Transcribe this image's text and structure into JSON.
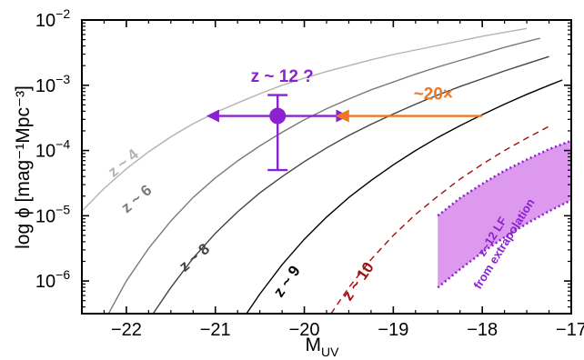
{
  "chart_data": {
    "type": "line",
    "xlabel": "M",
    "xlabel_sub": "UV",
    "ylabel": "log ϕ [mag⁻¹Mpc⁻³]",
    "xlim": [
      -22.5,
      -17.0
    ],
    "ylim": [
      -6.5,
      -2.0
    ],
    "yscale": "log",
    "grid": false,
    "x_ticks": [
      -22,
      -21,
      -20,
      -19,
      -18,
      -17
    ],
    "x_tick_labels": [
      "−22",
      "−21",
      "−20",
      "−19",
      "−18",
      "−17"
    ],
    "y_ticks": [
      -6,
      -5,
      -4,
      -3,
      -2
    ],
    "y_tick_labels": [
      {
        "base": "10",
        "exp": "−6"
      },
      {
        "base": "10",
        "exp": "−5"
      },
      {
        "base": "10",
        "exp": "−4"
      },
      {
        "base": "10",
        "exp": "−3"
      },
      {
        "base": "10",
        "exp": "−2"
      }
    ],
    "series": [
      {
        "name": "z ~ 4",
        "color": "#b3b3b3",
        "dash": false,
        "label_pos": [
          -22.0,
          -4.25
        ],
        "label_rot": -40,
        "x": [
          -22.5,
          -22.25,
          -22.0,
          -21.75,
          -21.5,
          -21.25,
          -21.0,
          -20.75,
          -20.5,
          -20.25,
          -20.0,
          -19.75,
          -19.5,
          -19.25,
          -19.0,
          -18.75,
          -18.5,
          -18.25,
          -18.0,
          -17.75,
          -17.5
        ],
        "y": [
          -4.93,
          -4.58,
          -4.28,
          -4.02,
          -3.79,
          -3.59,
          -3.42,
          -3.27,
          -3.13,
          -3.0,
          -2.89,
          -2.79,
          -2.7,
          -2.61,
          -2.53,
          -2.46,
          -2.39,
          -2.32,
          -2.25,
          -2.19,
          -2.13
        ]
      },
      {
        "name": "z ~ 6",
        "color": "#7a7a7a",
        "dash": false,
        "label_pos": [
          -21.85,
          -4.8
        ],
        "label_rot": -40,
        "x": [
          -22.2,
          -22.0,
          -21.75,
          -21.5,
          -21.25,
          -21.0,
          -20.75,
          -20.5,
          -20.25,
          -20.0,
          -19.75,
          -19.5,
          -19.25,
          -19.0,
          -18.75,
          -18.5,
          -18.25,
          -18.0,
          -17.75,
          -17.5,
          -17.35
        ],
        "y": [
          -6.5,
          -6.0,
          -5.5,
          -5.08,
          -4.72,
          -4.42,
          -4.16,
          -3.93,
          -3.72,
          -3.53,
          -3.36,
          -3.21,
          -3.07,
          -2.95,
          -2.83,
          -2.72,
          -2.62,
          -2.52,
          -2.42,
          -2.33,
          -2.28
        ]
      },
      {
        "name": "z ~ 8",
        "color": "#444444",
        "dash": false,
        "label_pos": [
          -21.2,
          -5.7
        ],
        "label_rot": -40,
        "x": [
          -21.7,
          -21.5,
          -21.25,
          -21.0,
          -20.75,
          -20.5,
          -20.25,
          -20.0,
          -19.75,
          -19.5,
          -19.25,
          -19.0,
          -18.75,
          -18.5,
          -18.25,
          -18.0,
          -17.75,
          -17.5,
          -17.25
        ],
        "y": [
          -6.5,
          -6.1,
          -5.65,
          -5.27,
          -4.94,
          -4.65,
          -4.4,
          -4.17,
          -3.96,
          -3.77,
          -3.6,
          -3.44,
          -3.29,
          -3.15,
          -3.02,
          -2.9,
          -2.78,
          -2.67,
          -2.56
        ]
      },
      {
        "name": "z ~ 9",
        "color": "#000000",
        "dash": false,
        "label_pos": [
          -20.15,
          -6.05
        ],
        "label_rot": -55,
        "x": [
          -20.65,
          -20.5,
          -20.25,
          -20.0,
          -19.75,
          -19.5,
          -19.25,
          -19.0,
          -18.75,
          -18.5,
          -18.25,
          -18.0,
          -17.75,
          -17.5,
          -17.25,
          -17.1
        ],
        "y": [
          -6.5,
          -6.2,
          -5.75,
          -5.36,
          -5.02,
          -4.72,
          -4.46,
          -4.22,
          -4.0,
          -3.8,
          -3.62,
          -3.45,
          -3.29,
          -3.14,
          -3.0,
          -2.92
        ]
      },
      {
        "name": "z ~ 10",
        "color": "#a01010",
        "dash": true,
        "label_pos": [
          -19.35,
          -6.05
        ],
        "label_rot": -55,
        "x": [
          -19.7,
          -19.5,
          -19.25,
          -19.0,
          -18.75,
          -18.5,
          -18.25,
          -18.0,
          -17.75,
          -17.5,
          -17.25
        ],
        "y": [
          -6.5,
          -6.1,
          -5.67,
          -5.3,
          -4.98,
          -4.7,
          -4.44,
          -4.21,
          -4.0,
          -3.81,
          -3.63
        ]
      }
    ],
    "band": {
      "name": "z~12 LF from extrapolation",
      "label_lines": [
        "z~12 LF",
        "from extrapolation"
      ],
      "color": "#dd99ee",
      "edge_color": "#8a22d0",
      "x": [
        -18.5,
        -18.25,
        -18.0,
        -17.75,
        -17.5,
        -17.25,
        -17.0
      ],
      "y_upper": [
        -5.0,
        -4.73,
        -4.51,
        -4.31,
        -4.14,
        -3.98,
        -3.85
      ],
      "y_lower": [
        -6.1,
        -5.82,
        -5.56,
        -5.33,
        -5.12,
        -4.93,
        -4.76
      ]
    },
    "point": {
      "label": "z ~ 12 ?",
      "x": -20.3,
      "y": -3.47,
      "y_upper": -3.15,
      "y_lower": -4.3,
      "x_arrow_left": -21.1,
      "x_arrow_right": -19.5,
      "color": "#8a22d0"
    },
    "arrow": {
      "label": "~20×",
      "x_start": -18.0,
      "x_end": -19.65,
      "y": -3.47,
      "color": "#ee7722"
    }
  }
}
